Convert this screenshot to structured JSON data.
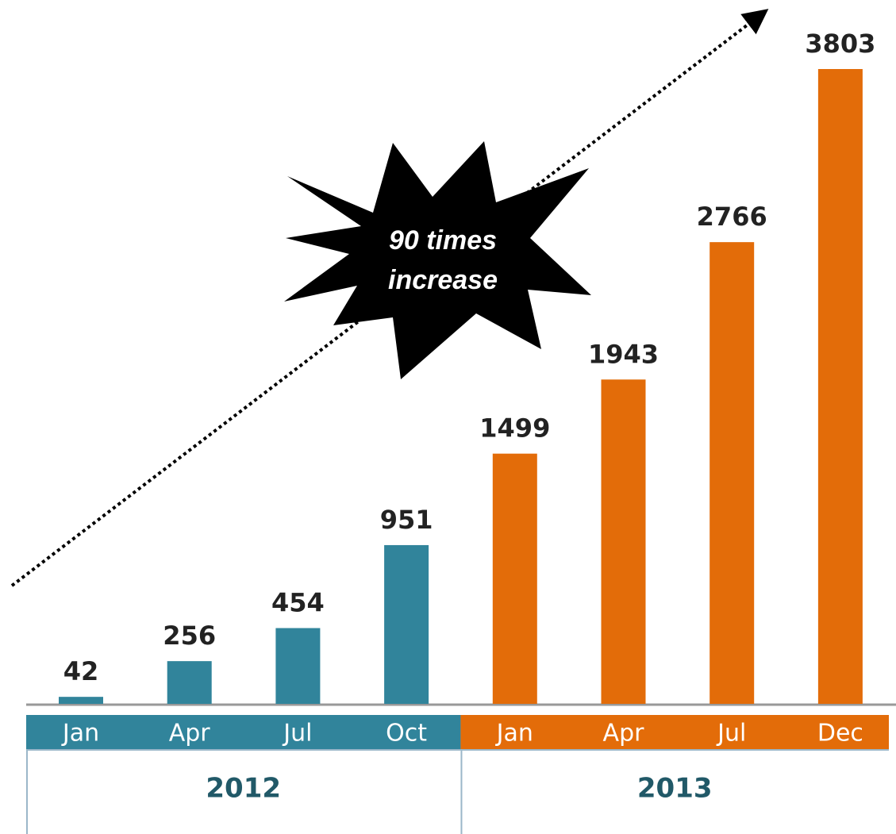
{
  "chart_data": {
    "type": "bar",
    "annotation": [
      "90 times",
      "increase"
    ],
    "groups": [
      {
        "name": "2012",
        "color": "#31849b",
        "categories": [
          "Jan",
          "Apr",
          "Jul",
          "Oct"
        ],
        "values": [
          42,
          256,
          454,
          951
        ]
      },
      {
        "name": "2013",
        "color": "#e36c09",
        "categories": [
          "Jan",
          "Apr",
          "Jul",
          "Dec"
        ],
        "values": [
          1499,
          1943,
          2766,
          3803
        ]
      }
    ]
  }
}
